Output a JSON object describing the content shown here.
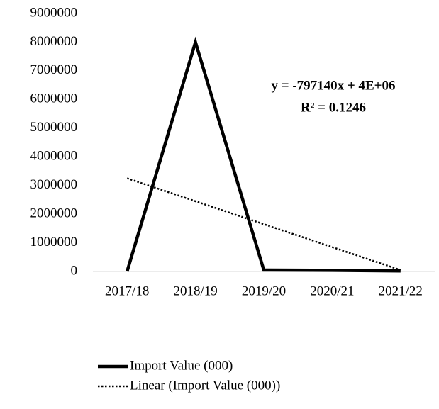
{
  "chart_data": {
    "type": "line",
    "categories": [
      "2017/18",
      "2018/19",
      "2019/20",
      "2020/21",
      "2021/22"
    ],
    "series": [
      {
        "name": "Import Value (000)",
        "color": "#000000",
        "line_style": "solid",
        "values": [
          0,
          8000000,
          50000,
          40000,
          20000
        ]
      },
      {
        "name": "Linear (Import Value (000))",
        "color": "#000000",
        "line_style": "dotted",
        "values": [
          3250000,
          2450000,
          1650000,
          850000,
          50000
        ]
      }
    ],
    "annotations": [
      "y = -797140x + 4E+06",
      "R² = 0.1246"
    ],
    "ylim": [
      0,
      9000000
    ],
    "yticks": [
      0,
      1000000,
      2000000,
      3000000,
      4000000,
      5000000,
      6000000,
      7000000,
      8000000,
      9000000
    ],
    "grid": false,
    "legend": "bottom"
  }
}
